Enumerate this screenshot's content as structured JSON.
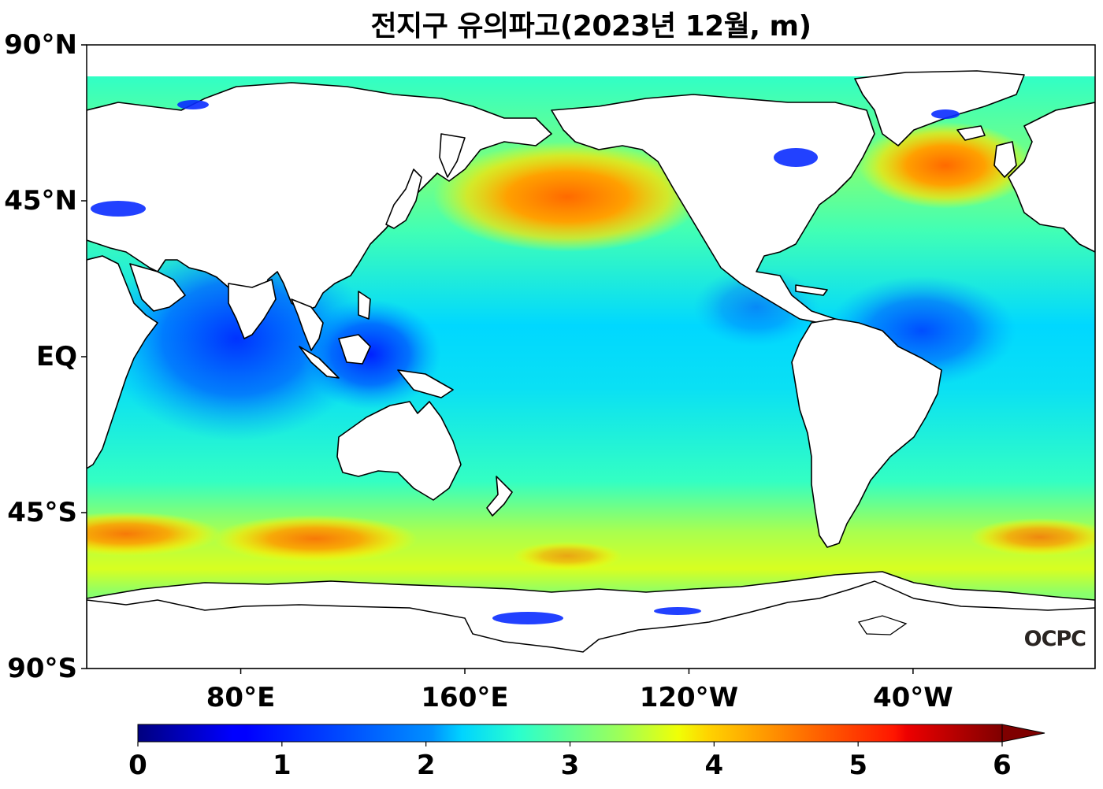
{
  "title": "전지구 유의파고(2023년 12월, m)",
  "map": {
    "y_ticks": [
      {
        "label": "90°N",
        "lat": 90
      },
      {
        "label": "45°N",
        "lat": 45
      },
      {
        "label": "EQ",
        "lat": 0
      },
      {
        "label": "45°S",
        "lat": -45
      },
      {
        "label": "90°S",
        "lat": -90
      }
    ],
    "x_ticks": [
      {
        "label": "80°E",
        "lon": 80
      },
      {
        "label": "160°E",
        "lon": 160
      },
      {
        "label": "120°W",
        "lon": 240
      },
      {
        "label": "40°W",
        "lon": 320
      }
    ],
    "lon_range": [
      25,
      385
    ],
    "lat_range": [
      -90,
      90
    ],
    "credit": "OCPC",
    "land_color": "#ffffff",
    "coast_color": "#000000"
  },
  "colorbar": {
    "min": 0,
    "max": 6,
    "ticks": [
      "0",
      "1",
      "2",
      "3",
      "4",
      "5",
      "6"
    ],
    "extend": "max",
    "colormap": "jet"
  },
  "regions": {
    "north_pacific_max": 4.7,
    "north_atlantic_max": 4.7,
    "southern_ocean_max": 4.5,
    "tropical_pacific": 2.7,
    "indian_ocean": 1.7,
    "maritime_continent": 0.9
  }
}
